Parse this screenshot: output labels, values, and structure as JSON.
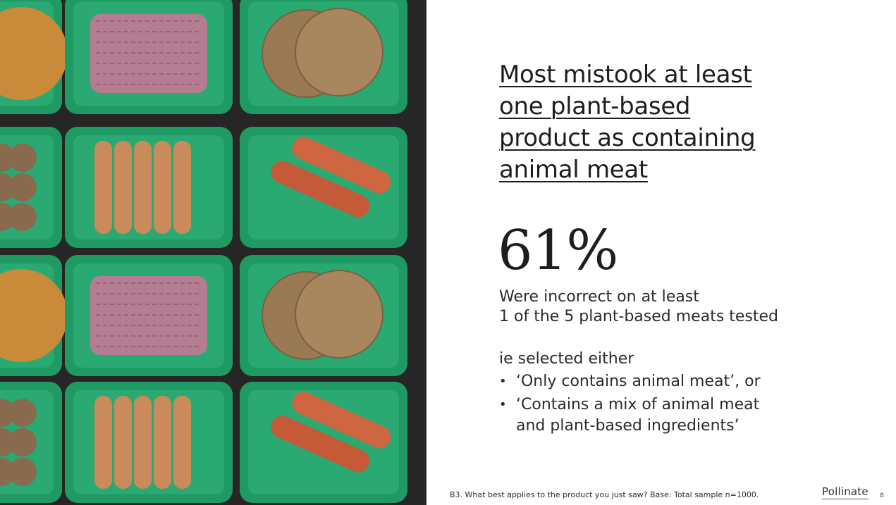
{
  "image": {
    "alt_icon": "plant-based-meat-trays-photo",
    "colors": {
      "background": "#262626",
      "tray": "#1f9a63",
      "tray_inner": "#2aa972",
      "patty": "#9a7a55",
      "mince": "#b57d92",
      "sausage": "#c98a5c",
      "meatball": "#8a6a4e",
      "breaded": "#c98a3a",
      "red_sausage": "#c45a38"
    }
  },
  "slide": {
    "title_lines": [
      "Most mistook at least",
      "one plant-based",
      "product as containing",
      "animal meat"
    ],
    "stat_value": "61%",
    "stat_description_lines": [
      "Were incorrect on at least",
      "1 of the 5 plant-based meats tested"
    ],
    "ie_intro": "ie selected either",
    "options": [
      {
        "bullet": "•",
        "lines": [
          "‘Only contains animal meat’, or"
        ]
      },
      {
        "bullet": "•",
        "lines": [
          "‘Contains a mix of animal meat",
          "and plant-based ingredients’"
        ]
      }
    ]
  },
  "footer": {
    "note": "B3. What best applies to the product you just saw? Base: Total sample n=1000.",
    "logo": "Pollinate",
    "page_number": "8"
  }
}
